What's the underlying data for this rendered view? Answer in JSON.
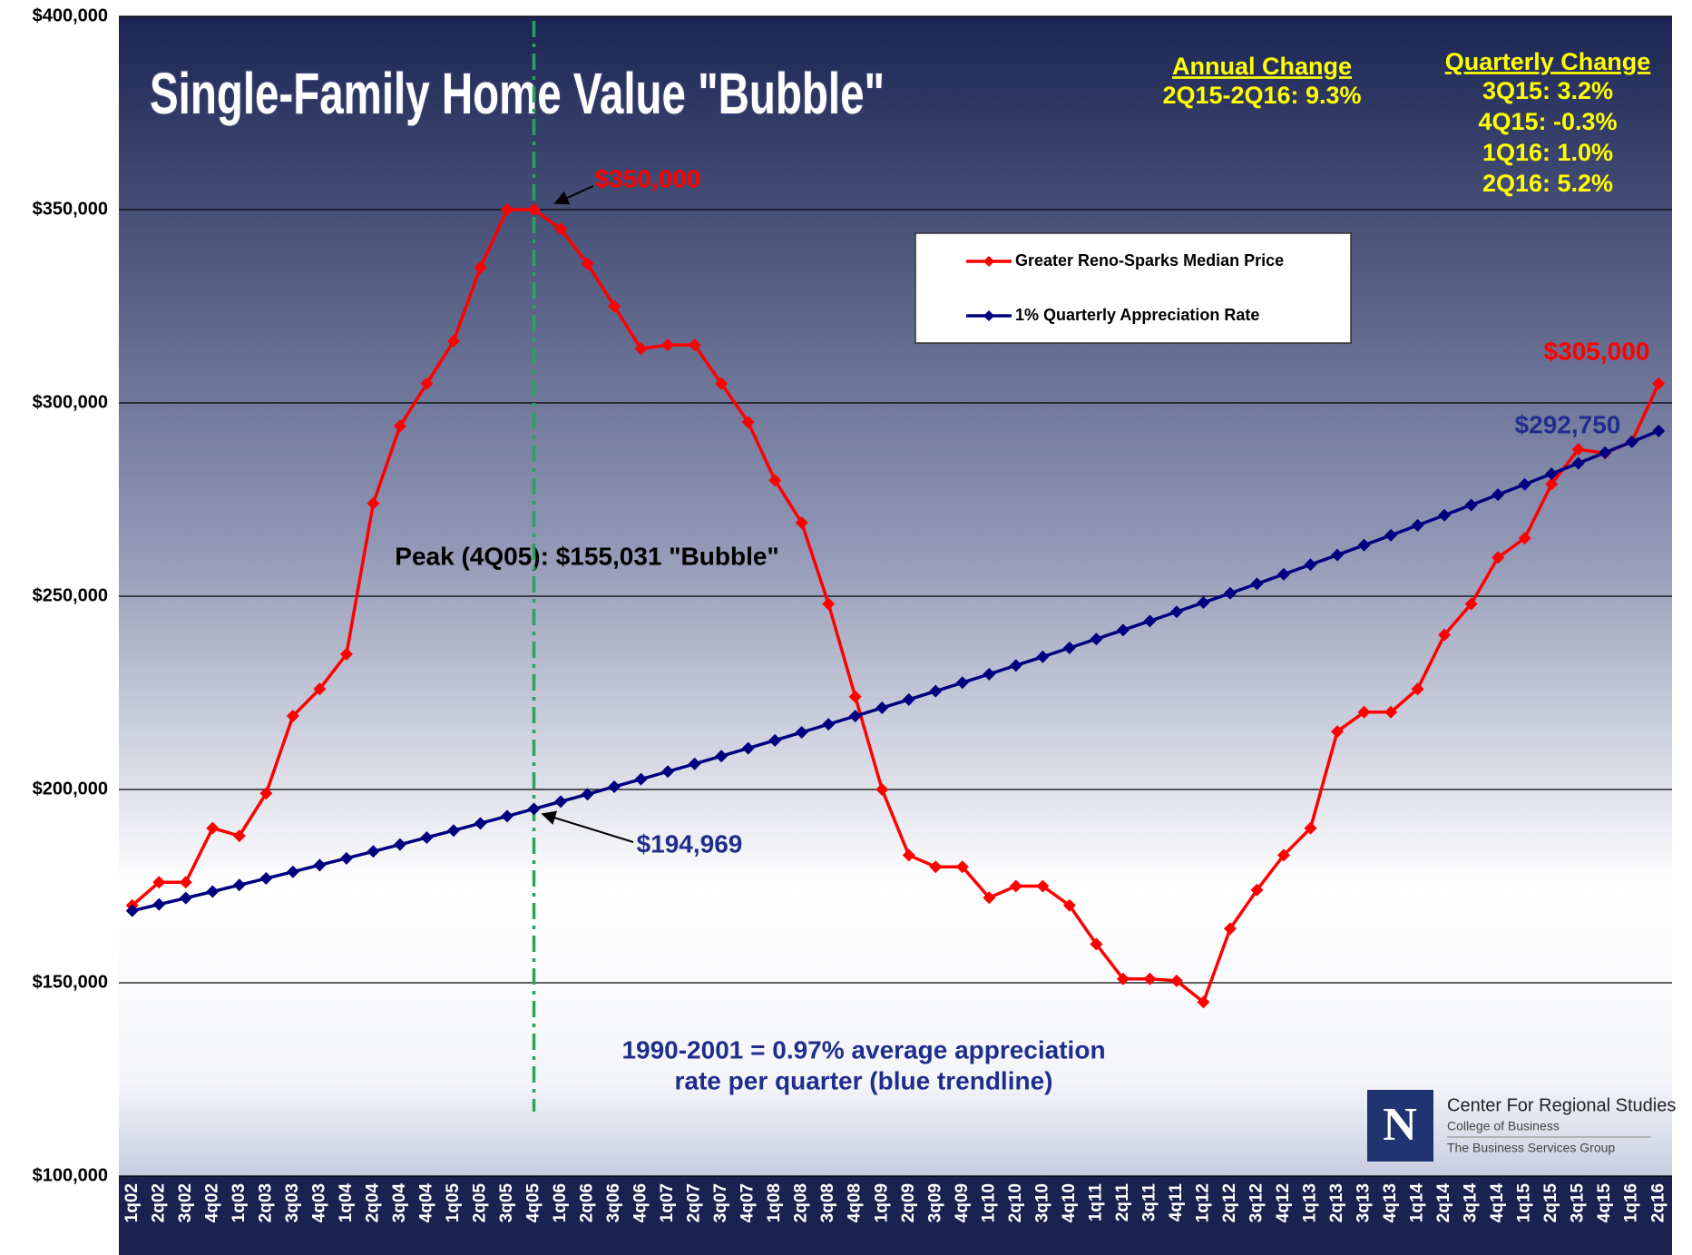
{
  "chart_data": {
    "type": "line",
    "title": "Single-Family Home Value \"Bubble\"",
    "categories": [
      "1q02",
      "2q02",
      "3q02",
      "4q02",
      "1q03",
      "2q03",
      "3q03",
      "4q03",
      "1q04",
      "2q04",
      "3q04",
      "4q04",
      "1q05",
      "2q05",
      "3q05",
      "4q05",
      "1q06",
      "2q06",
      "3q06",
      "4q06",
      "1q07",
      "2q07",
      "3q07",
      "4q07",
      "1q08",
      "2q08",
      "3q08",
      "4q08",
      "1q09",
      "2q09",
      "3q09",
      "4q09",
      "1q10",
      "2q10",
      "3q10",
      "4q10",
      "1q11",
      "2q11",
      "3q11",
      "4q11",
      "1q12",
      "2q12",
      "3q12",
      "4q12",
      "1q13",
      "2q13",
      "3q13",
      "4q13",
      "1q14",
      "2q14",
      "3q14",
      "4q14",
      "1q15",
      "2q15",
      "3q15",
      "4q15",
      "1q16",
      "2q16"
    ],
    "series": [
      {
        "name": "Greater Reno-Sparks Median Price",
        "color": "#ff0000",
        "values": [
          170000,
          176000,
          176000,
          190000,
          188000,
          199000,
          219000,
          226000,
          235000,
          274000,
          294000,
          305000,
          316000,
          335000,
          350000,
          350000,
          345000,
          336000,
          325000,
          314000,
          315000,
          315000,
          305000,
          295000,
          280000,
          269000,
          248000,
          224000,
          200000,
          183000,
          180000,
          180000,
          172000,
          175000,
          175000,
          170000,
          160000,
          151000,
          151000,
          150500,
          145000,
          164000,
          174000,
          183000,
          190000,
          215000,
          220000,
          220000,
          226000,
          240000,
          248000,
          260000,
          265000,
          279000,
          288000,
          287000,
          290000,
          305000
        ]
      },
      {
        "name": "1% Quarterly Appreciation Rate",
        "color": "#000080",
        "values": [
          168622,
          170262,
          171918,
          173590,
          175279,
          176984,
          178705,
          180443,
          182198,
          183970,
          185760,
          187567,
          189391,
          191233,
          193093,
          194969,
          196865,
          198780,
          200713,
          202665,
          204636,
          206627,
          208637,
          210666,
          212715,
          214784,
          216873,
          218983,
          221113,
          223264,
          225435,
          227628,
          229842,
          232077,
          234335,
          236614,
          238915,
          241239,
          243586,
          245955,
          248347,
          250763,
          253202,
          255665,
          258152,
          260663,
          263198,
          265758,
          268343,
          270953,
          273589,
          276250,
          278937,
          281650,
          284390,
          287156,
          289949,
          292750
        ]
      }
    ],
    "ylim": [
      100000,
      400000
    ],
    "yticks": [
      {
        "value": 100000,
        "label": "$100,000"
      },
      {
        "value": 150000,
        "label": "$150,000"
      },
      {
        "value": 200000,
        "label": "$200,000"
      },
      {
        "value": 250000,
        "label": "$250,000"
      },
      {
        "value": 300000,
        "label": "$300,000"
      },
      {
        "value": 350000,
        "label": "$350,000"
      },
      {
        "value": 400000,
        "label": "$400,000"
      }
    ],
    "grid": true,
    "marker_line": {
      "category": "4q05",
      "color": "#2ca25f"
    },
    "annotations": {
      "peak_value": "$350,000",
      "end_value": "$305,000",
      "trend_end": "$292,750",
      "trend_peak": "$194,969",
      "bubble": "Peak (4Q05): $155,031 \"Bubble\"",
      "note": [
        "1990-2001 = 0.97%  average appreciation",
        "rate per quarter (blue trendline)"
      ]
    },
    "annual_change": {
      "title": "Annual Change",
      "lines": [
        "2Q15-2Q16: 9.3%"
      ]
    },
    "quarterly_change": {
      "title": "Quarterly Change",
      "lines": [
        "3Q15: 3.2%",
        "4Q15: -0.3%",
        "1Q16: 1.0%",
        "2Q16: 5.2%"
      ]
    },
    "logo": {
      "mark": "N",
      "name": "Center For Regional Studies",
      "lines": [
        "College of Business",
        "The Business Services Group"
      ]
    }
  }
}
